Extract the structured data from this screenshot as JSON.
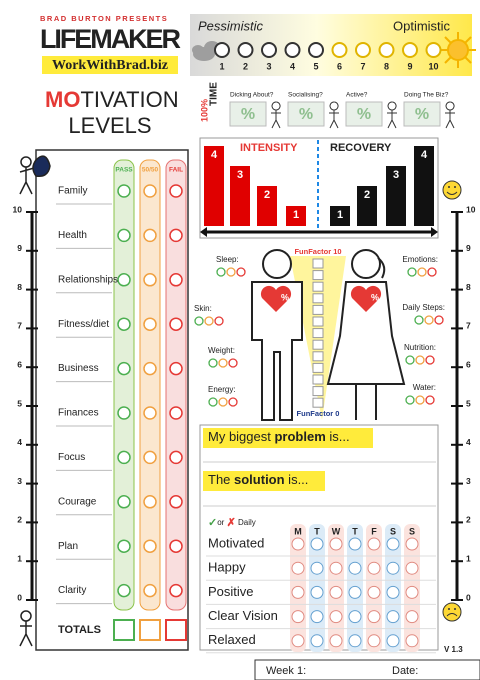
{
  "header": {
    "brand": "BRAD BURTON PRESENTS",
    "title": "LIFEMAKER",
    "url": "WorkWithBrad.biz"
  },
  "mood_scale": {
    "low": "Pessimistic",
    "high": "Optimistic",
    "points": [
      1,
      2,
      3,
      4,
      5,
      6,
      7,
      8,
      9,
      10
    ]
  },
  "motivation": {
    "title_highlight": "MO",
    "title_rest": "TIVATION",
    "subtitle": "LEVELS",
    "columns": [
      "PASS",
      "50/50",
      "FAIL"
    ],
    "rows": [
      "Family",
      "Health",
      "Relationships",
      "Fitness/diet",
      "Business",
      "Finances",
      "Focus",
      "Courage",
      "Plan",
      "Clarity"
    ],
    "totals": "TOTALS",
    "scale": [
      10,
      9,
      8,
      7,
      6,
      5,
      4,
      3,
      2,
      1,
      0
    ]
  },
  "time": {
    "percent": "100%",
    "label": "TIME",
    "questions": [
      "Dicking About?",
      "Socialising?",
      "Active?",
      "Doing The Biz?"
    ],
    "unit": "%"
  },
  "energy_chart": {
    "intensity": "INTENSITY",
    "recovery": "RECOVERY",
    "intensity_values": [
      4,
      3,
      2,
      1
    ],
    "recovery_values": [
      1,
      2,
      3,
      4
    ]
  },
  "funfactor": {
    "top": "FunFactor 10",
    "bottom": "FunFactor 0"
  },
  "body_metrics": {
    "left": [
      "Sleep:",
      "Skin:",
      "Weight:",
      "Energy:"
    ],
    "right": [
      "Emotions:",
      "Daily Steps:",
      "Nutrition:",
      "Water:"
    ],
    "heart_unit": "%"
  },
  "reflection": {
    "problem": {
      "before": "My biggest ",
      "bold": "problem",
      "after": " is..."
    },
    "solution": {
      "before": "The ",
      "bold": "solution",
      "after": " is..."
    }
  },
  "daily": {
    "check": "✓",
    "or": "or ",
    "cross": "✗",
    "label": " Daily",
    "days": [
      "M",
      "T",
      "W",
      "T",
      "F",
      "S",
      "S"
    ],
    "items": [
      "Motivated",
      "Happy",
      "Positive",
      "Clear Vision",
      "Relaxed"
    ]
  },
  "footer": {
    "version": "V 1.3",
    "week": "Week 1:",
    "date": "Date:"
  }
}
